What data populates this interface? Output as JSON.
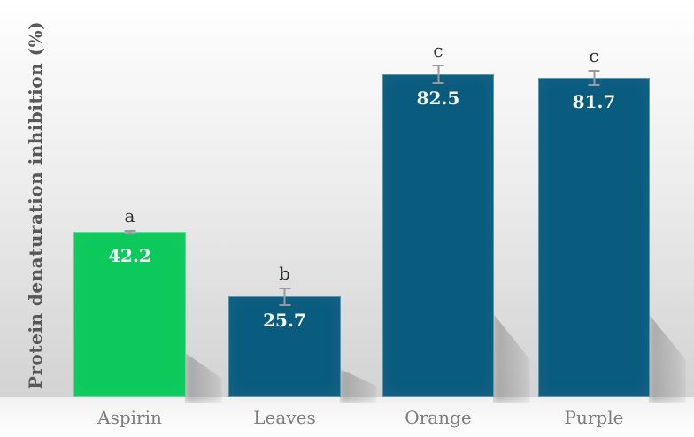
{
  "chart_data": {
    "type": "bar",
    "title": "",
    "xlabel": "",
    "ylabel": "Protein denaturation inhibition (%)",
    "categories": [
      "Aspirin",
      "Leaves",
      "Orange",
      "Purple"
    ],
    "values": [
      42.2,
      25.7,
      82.5,
      81.7
    ],
    "value_labels": [
      "42.2",
      "25.7",
      "82.5",
      "81.7"
    ],
    "significance_letters": [
      "a",
      "b",
      "c",
      "c"
    ],
    "error_bars": [
      0.5,
      2.3,
      2.5,
      2.0
    ],
    "ylim": [
      0,
      100
    ],
    "grid": false,
    "legend": "none",
    "bar_colors": [
      "#0cc95c",
      "#0a5c7e",
      "#0a5c7e",
      "#0a5c7e"
    ],
    "value_label_color": "#f7fbfd",
    "category_label_color": "#7d7d7d",
    "letter_color": "#303030",
    "error_bar_color": "#9a9a9a",
    "ylabel_color": "#585858",
    "background_top_color": "#ffffff",
    "background_bottom_color": "#d3d3d3"
  }
}
